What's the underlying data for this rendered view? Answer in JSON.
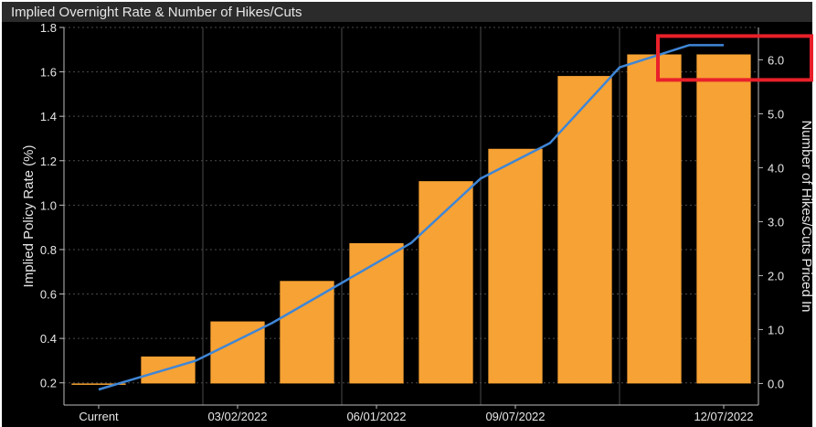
{
  "chart_data": {
    "type": "bar",
    "title": "Implied Overnight Rate & Number of Hikes/Cuts",
    "categories": [
      "Current",
      "",
      "03/02/2022",
      "",
      "06/01/2022",
      "",
      "09/07/2022",
      "",
      "",
      "12/07/2022"
    ],
    "x_tick_labels": [
      "Current",
      "03/02/2022",
      "06/01/2022",
      "09/07/2022",
      "12/07/2022"
    ],
    "series": [
      {
        "axis": "right",
        "type": "bar",
        "color": "#f7a234",
        "values": [
          0.0,
          0.5,
          1.15,
          1.9,
          2.6,
          3.75,
          4.35,
          5.7,
          6.1,
          6.1
        ]
      },
      {
        "axis": "left",
        "type": "line",
        "color": "#3f86d6",
        "values": [
          0.17,
          0.3,
          0.47,
          0.65,
          0.83,
          1.12,
          1.28,
          1.62,
          1.72,
          1.72
        ]
      }
    ],
    "line_x_indices": [
      0,
      1.4,
      2.5,
      3.5,
      4.5,
      5.5,
      6.5,
      7.5,
      8.5,
      9
    ],
    "ylabel": "Implied Policy Rate (%)",
    "ylim": [
      0.1,
      1.8
    ],
    "y_ticks": [
      "0.2",
      "0.4",
      "0.6",
      "0.8",
      "1.0",
      "1.2",
      "1.4",
      "1.6",
      "1.8"
    ],
    "y2label": "Number of Hikes/Cuts Priced In",
    "y2lim": [
      -0.4,
      6.6
    ],
    "y2_ticks": [
      "0.0",
      "1.0",
      "2.0",
      "3.0",
      "4.0",
      "5.0",
      "6.0"
    ],
    "grid": true,
    "highlight": {
      "color": "#e8202a",
      "target": "6.0"
    }
  }
}
